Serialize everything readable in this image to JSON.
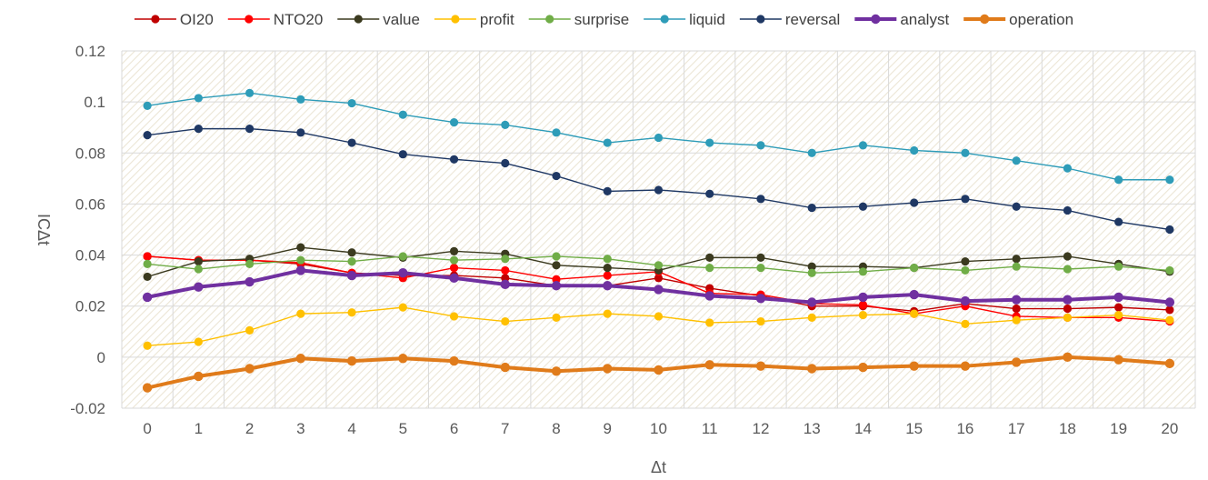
{
  "chart_data": {
    "type": "line",
    "title": "",
    "xlabel": "Δt",
    "ylabel": "ICΔt",
    "x": [
      "0",
      "1",
      "2",
      "3",
      "4",
      "5",
      "6",
      "7",
      "8",
      "9",
      "10",
      "11",
      "12",
      "13",
      "14",
      "15",
      "16",
      "17",
      "18",
      "19",
      "20"
    ],
    "ylim": [
      -0.02,
      0.12
    ],
    "yticks": [
      -0.02,
      0,
      0.02,
      0.04,
      0.06,
      0.08,
      0.1,
      0.12
    ],
    "ytick_labels": [
      "-0.02",
      "0",
      "0.02",
      "0.04",
      "0.06",
      "0.08",
      "0.1",
      "0.12"
    ],
    "grid": true,
    "legend": "top",
    "series": [
      {
        "name": "OI20",
        "color": "#C00000",
        "bold": false,
        "values": [
          0.0395,
          0.038,
          0.038,
          0.0365,
          0.033,
          0.032,
          0.032,
          0.031,
          0.028,
          0.028,
          0.031,
          0.027,
          0.024,
          0.02,
          0.02,
          0.018,
          0.021,
          0.019,
          0.019,
          0.0195,
          0.0185
        ]
      },
      {
        "name": "NTO20",
        "color": "#FF0000",
        "bold": false,
        "values": [
          0.0395,
          0.038,
          0.038,
          0.037,
          0.033,
          0.031,
          0.035,
          0.034,
          0.0305,
          0.032,
          0.0335,
          0.025,
          0.0245,
          0.021,
          0.0205,
          0.017,
          0.02,
          0.016,
          0.0155,
          0.0155,
          0.014
        ]
      },
      {
        "name": "value",
        "color": "#3B3A1F",
        "bold": false,
        "values": [
          0.0315,
          0.0375,
          0.0385,
          0.043,
          0.041,
          0.039,
          0.0415,
          0.0405,
          0.036,
          0.035,
          0.034,
          0.039,
          0.039,
          0.0355,
          0.0355,
          0.035,
          0.0375,
          0.0385,
          0.0395,
          0.0365,
          0.0335
        ]
      },
      {
        "name": "profit",
        "color": "#FFC000",
        "bold": false,
        "values": [
          0.0045,
          0.006,
          0.0105,
          0.017,
          0.0175,
          0.0195,
          0.016,
          0.014,
          0.0155,
          0.017,
          0.016,
          0.0135,
          0.014,
          0.0155,
          0.0165,
          0.017,
          0.013,
          0.0145,
          0.0155,
          0.0165,
          0.0145
        ]
      },
      {
        "name": "surprise",
        "color": "#70AD47",
        "bold": false,
        "values": [
          0.0365,
          0.0345,
          0.0365,
          0.038,
          0.0375,
          0.0395,
          0.038,
          0.0385,
          0.0395,
          0.0385,
          0.036,
          0.035,
          0.035,
          0.033,
          0.0335,
          0.035,
          0.034,
          0.0355,
          0.0345,
          0.0355,
          0.034
        ]
      },
      {
        "name": "liquid",
        "color": "#2E9CB8",
        "bold": false,
        "values": [
          0.0985,
          0.1015,
          0.1035,
          0.101,
          0.0995,
          0.095,
          0.092,
          0.091,
          0.088,
          0.084,
          0.086,
          0.084,
          0.083,
          0.08,
          0.083,
          0.081,
          0.08,
          0.077,
          0.074,
          0.0695,
          0.0695
        ]
      },
      {
        "name": "reversal",
        "color": "#1F3864",
        "bold": false,
        "values": [
          0.087,
          0.0895,
          0.0895,
          0.088,
          0.084,
          0.0795,
          0.0775,
          0.076,
          0.071,
          0.065,
          0.0655,
          0.064,
          0.062,
          0.0585,
          0.059,
          0.0605,
          0.062,
          0.059,
          0.0575,
          0.053,
          0.05
        ]
      },
      {
        "name": "analyst",
        "color": "#7030A0",
        "bold": true,
        "values": [
          0.0235,
          0.0275,
          0.0295,
          0.034,
          0.032,
          0.033,
          0.031,
          0.0285,
          0.028,
          0.028,
          0.0265,
          0.024,
          0.023,
          0.0215,
          0.0235,
          0.0245,
          0.022,
          0.0225,
          0.0225,
          0.0235,
          0.0215
        ]
      },
      {
        "name": "operation",
        "color": "#E07B1A",
        "bold": true,
        "values": [
          -0.012,
          -0.0075,
          -0.0045,
          -0.0005,
          -0.0015,
          -0.0005,
          -0.0015,
          -0.004,
          -0.0055,
          -0.0045,
          -0.005,
          -0.003,
          -0.0035,
          -0.0045,
          -0.004,
          -0.0035,
          -0.0035,
          -0.002,
          0.0,
          -0.001,
          -0.0025
        ]
      }
    ]
  }
}
